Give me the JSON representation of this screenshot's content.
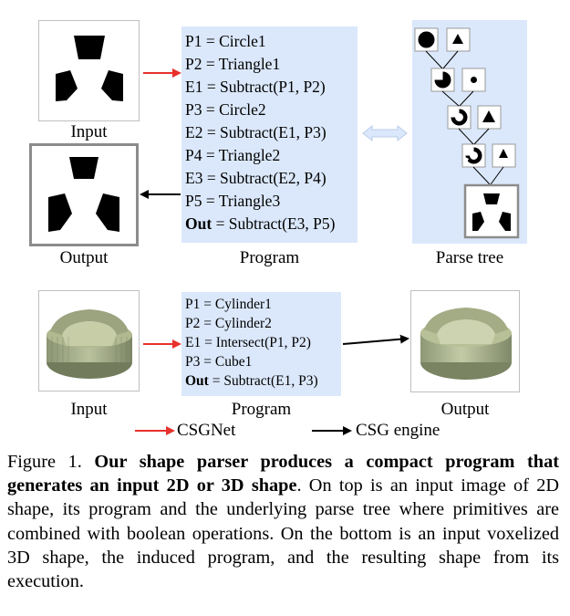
{
  "top": {
    "input_label": "Input",
    "output_label": "Output",
    "program_label": "Program",
    "parse_tree_label": "Parse tree",
    "program_lines": [
      {
        "text": "P1 = Circle1"
      },
      {
        "text": "P2 = Triangle1"
      },
      {
        "text": "E1 = Subtract(P1, P2)"
      },
      {
        "text": "P3 = Circle2"
      },
      {
        "text": "E2 = Subtract(E1, P3)"
      },
      {
        "text": "P4 = Triangle2"
      },
      {
        "text": "E3 = Subtract(E2, P4)"
      },
      {
        "text": "P5 = Triangle3"
      },
      {
        "bold": "Out",
        "text": " = Subtract(E3, P5)"
      }
    ]
  },
  "bottom": {
    "input_label": "Input",
    "program_label": "Program",
    "output_label": "Output",
    "program_lines": [
      {
        "text": "P1 = Cylinder1"
      },
      {
        "text": "P2 = Cylinder2"
      },
      {
        "text": "E1 = Intersect(P1, P2)"
      },
      {
        "text": "P3 = Cube1"
      },
      {
        "bold": "Out",
        "text": " = Subtract(E1, P3)"
      }
    ]
  },
  "legend": {
    "csgnet_label": "CSGNet",
    "csgnet_color": "#e8312d",
    "engine_label": "CSG engine",
    "engine_color": "#000000"
  },
  "caption": {
    "prefix": "Figure 1. ",
    "bold": "Our shape parser produces a compact program that generates an input 2D or 3D shape",
    "rest": ". On top is an input image of 2D shape, its program and the underlying parse tree where primitives are combined with boolean operations. On the bottom is an input voxelized 3D shape, the induced program, and the resulting shape from its execution."
  }
}
